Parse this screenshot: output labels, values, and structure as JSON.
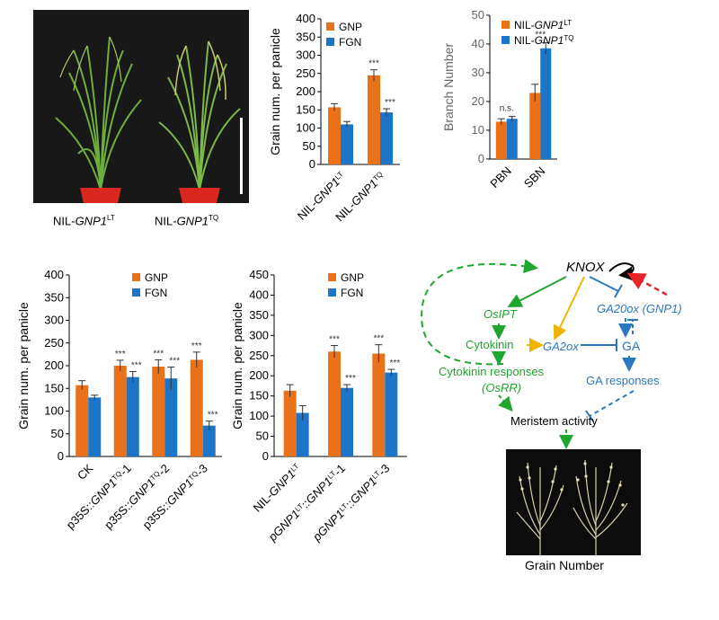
{
  "colors": {
    "gnp": "#E8711A",
    "fgn": "#1C75C8",
    "green": "#1FA62E",
    "blue": "#2B78C0",
    "yellow": "#F0B400",
    "red": "#E8242A"
  },
  "photo1": {
    "label_left": {
      "prefix": "NIL-",
      "gene": "GNP1",
      "sup": "LT"
    },
    "label_right": {
      "prefix": "NIL-",
      "gene": "GNP1",
      "sup": "TQ"
    }
  },
  "chart_data": [
    {
      "type": "bar",
      "ylabel": "Grain num. per panicle",
      "ylim": [
        0,
        400
      ],
      "yticks": [
        0,
        50,
        100,
        150,
        200,
        250,
        300,
        350,
        400
      ],
      "categories": [
        {
          "prefix": "NIL-",
          "gene": "GNP1",
          "sup": "LT",
          "suffix": ""
        },
        {
          "prefix": "NIL-",
          "gene": "GNP1",
          "sup": "TQ",
          "suffix": ""
        }
      ],
      "series": [
        {
          "name": "GNP",
          "values": [
            157,
            245
          ],
          "errors": [
            10,
            15
          ]
        },
        {
          "name": "FGN",
          "values": [
            110,
            143
          ],
          "errors": [
            8,
            10
          ]
        }
      ],
      "annotations": [
        [
          "",
          ""
        ],
        [
          "***",
          "***"
        ]
      ]
    },
    {
      "type": "bar",
      "ylabel": "Branch Number",
      "ylim": [
        0,
        50
      ],
      "yticks": [
        0,
        10,
        20,
        30,
        40,
        50
      ],
      "categories": [
        "PBN",
        "SBN"
      ],
      "series": [
        {
          "name": "NIL-GNP1LT",
          "prefix": "NIL-",
          "gene": "GNP1",
          "sup": "LT",
          "values": [
            13,
            23
          ],
          "errors": [
            1,
            3
          ]
        },
        {
          "name": "NIL-GNP1TQ",
          "prefix": "NIL-",
          "gene": "GNP1",
          "sup": "TQ",
          "values": [
            14,
            38.5
          ],
          "errors": [
            0.8,
            2
          ]
        }
      ],
      "annotations": [
        "n.s.",
        "***"
      ]
    },
    {
      "type": "bar",
      "ylabel": "Grain num. per panicle",
      "ylim": [
        0,
        400
      ],
      "yticks": [
        0,
        50,
        100,
        150,
        200,
        250,
        300,
        350,
        400
      ],
      "categories": [
        {
          "prefix": "CK",
          "gene": "",
          "sup": "",
          "suffix": ""
        },
        {
          "prefix": "p35S::",
          "gene": "GNP1",
          "sup": "TQ",
          "suffix": "-1"
        },
        {
          "prefix": "p35S::",
          "gene": "GNP1",
          "sup": "TQ",
          "suffix": "-2"
        },
        {
          "prefix": "p35S::",
          "gene": "GNP1",
          "sup": "TQ",
          "suffix": "-3"
        }
      ],
      "series": [
        {
          "name": "GNP",
          "values": [
            157,
            200,
            198,
            213
          ],
          "errors": [
            10,
            12,
            15,
            17
          ]
        },
        {
          "name": "FGN",
          "values": [
            130,
            175,
            172,
            68
          ],
          "errors": [
            5,
            12,
            25,
            10
          ]
        }
      ],
      "annotations": [
        [
          "",
          ""
        ],
        [
          "***",
          "***"
        ],
        [
          "***",
          "***"
        ],
        [
          "***",
          "***"
        ]
      ]
    },
    {
      "type": "bar",
      "ylabel": "Grain num. per panicle",
      "ylim": [
        0,
        450
      ],
      "yticks": [
        0,
        50,
        100,
        150,
        200,
        250,
        300,
        350,
        400,
        450
      ],
      "categories": [
        {
          "prefix": "NIL-",
          "gene": "GNP1",
          "sup": "LT",
          "suffix": ""
        },
        {
          "prefix": "pGNP1",
          "gene": "",
          "sup": "LT",
          "suffix": "::",
          "gene2": "GNP1",
          "sup2": "LT",
          "suffix2": "-1"
        },
        {
          "prefix": "pGNP1",
          "gene": "",
          "sup": "LT",
          "suffix": "::",
          "gene2": "GNP1",
          "sup2": "LT",
          "suffix2": "-3"
        }
      ],
      "series": [
        {
          "name": "GNP",
          "values": [
            163,
            260,
            255
          ],
          "errors": [
            15,
            15,
            22
          ]
        },
        {
          "name": "FGN",
          "values": [
            108,
            170,
            208
          ],
          "errors": [
            18,
            8,
            8
          ]
        }
      ],
      "annotations": [
        [
          "",
          ""
        ],
        [
          "***",
          "***"
        ],
        [
          "***",
          "***"
        ]
      ]
    }
  ],
  "diagram": {
    "knox": "KNOX",
    "osipt": "OsIPT",
    "ga20ox": "GA20ox (GNP1)",
    "cytokinin": "Cytokinin",
    "ga2ox": "GA2ox",
    "ga": "GA",
    "cyto_resp_1": "Cytokinin responses",
    "cyto_resp_2": "(OsRR)",
    "ga_resp": "GA responses",
    "meristem": "Meristem activity",
    "grain_number": "Grain Number"
  }
}
